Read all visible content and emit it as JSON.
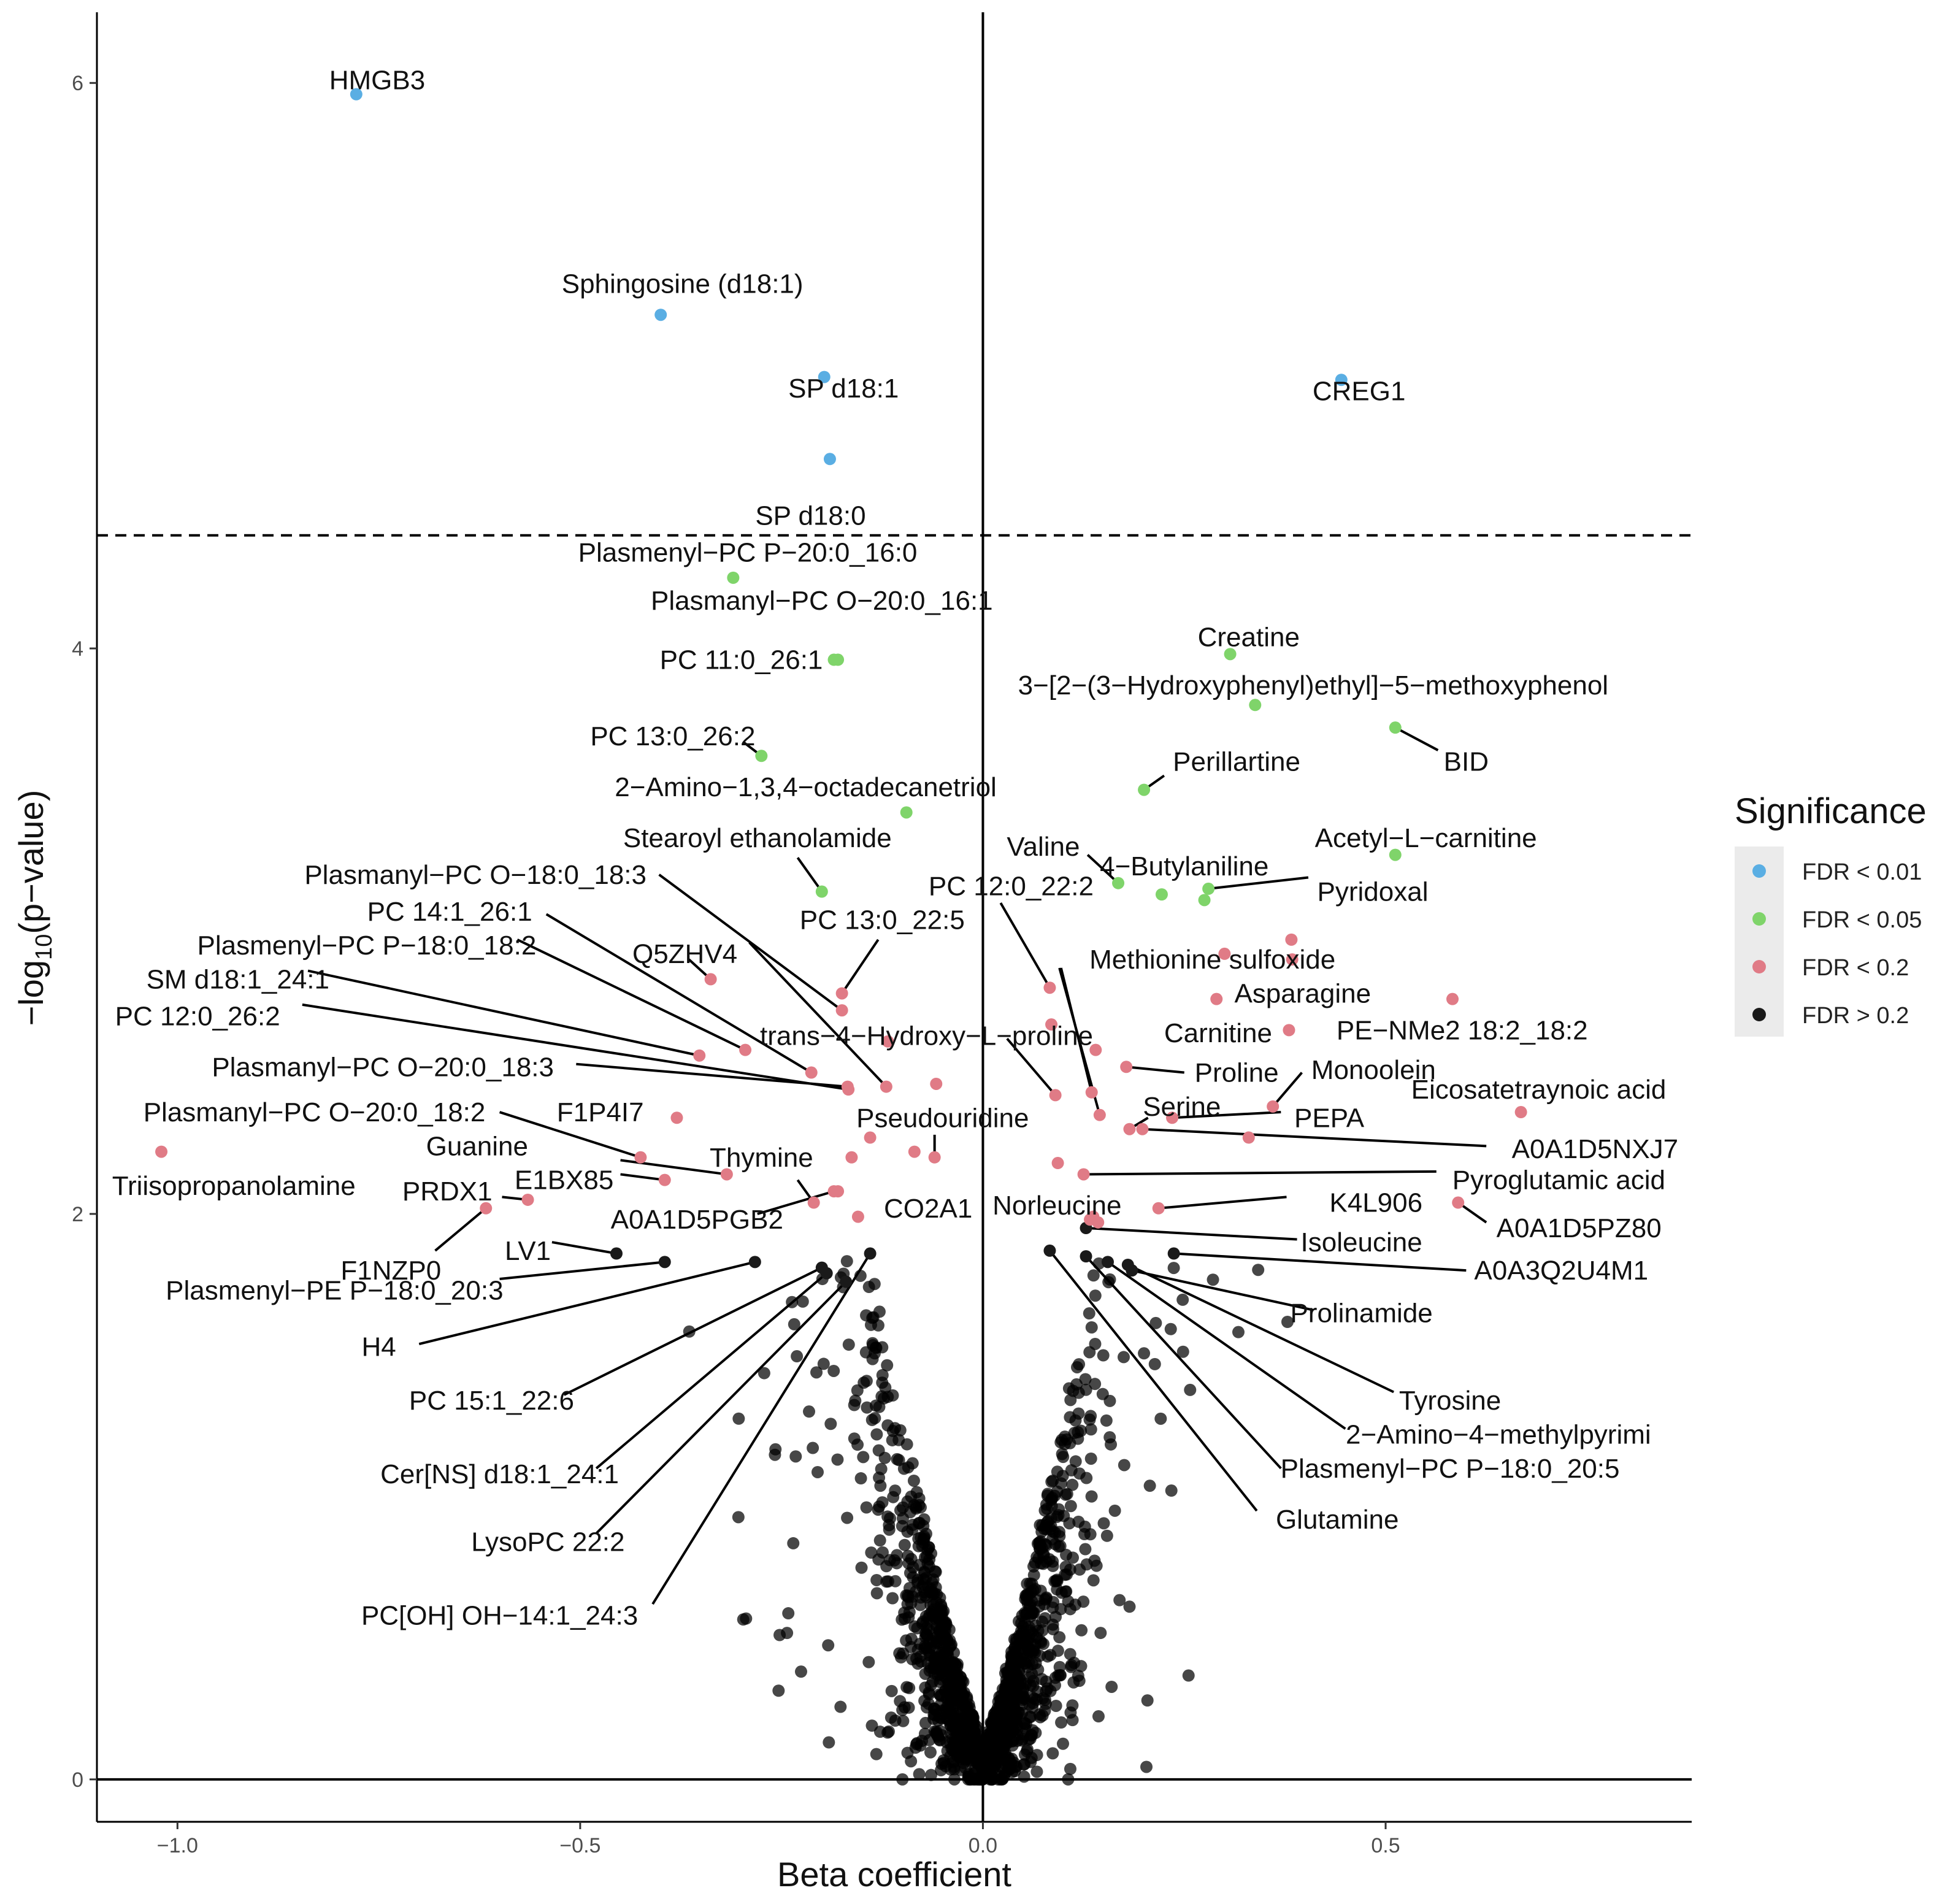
{
  "chart_data": {
    "type": "scatter",
    "title": "",
    "xlabel": "Beta coefficient",
    "ylabel_parts": [
      "−log",
      "10",
      "(p−value)"
    ],
    "xlim": [
      -1.1,
      0.88
    ],
    "ylim": [
      -0.15,
      6.25
    ],
    "x_ticks": [
      -1.0,
      -0.5,
      0.0,
      0.5
    ],
    "x_tick_labels": [
      "−1.0",
      "−0.5",
      "0.0",
      "0.5"
    ],
    "y_ticks": [
      0,
      2,
      4,
      6
    ],
    "y_tick_labels": [
      "0",
      "2",
      "4",
      "6"
    ],
    "threshold_y": 4.4,
    "colors": {
      "FDR < 0.01": "#5aaee3",
      "FDR < 0.05": "#7fd46a",
      "FDR < 0.2": "#e07b86",
      "FDR > 0.2": "#1a1a1a"
    },
    "legend": {
      "title": "Significance",
      "position": "right",
      "entries": [
        "FDR < 0.01",
        "FDR < 0.05",
        "FDR < 0.2",
        "FDR > 0.2"
      ]
    },
    "labeled_points": [
      {
        "label": "HMGB3",
        "x": -0.778,
        "y": 5.96,
        "sig": "FDR < 0.01",
        "tx": -0.752,
        "ty": 6.01,
        "anchor": "middle"
      },
      {
        "label": "Sphingosine (d18:1)",
        "x": -0.4,
        "y": 5.18,
        "sig": "FDR < 0.01",
        "tx": -0.373,
        "ty": 5.29,
        "anchor": "middle"
      },
      {
        "label": "SP d18:1",
        "x": -0.197,
        "y": 4.96,
        "sig": "FDR < 0.01",
        "tx": -0.173,
        "ty": 4.92,
        "anchor": "middle"
      },
      {
        "label": "SP d18:0",
        "x": -0.19,
        "y": 4.67,
        "sig": "FDR < 0.01",
        "tx": -0.214,
        "ty": 4.47,
        "anchor": "middle"
      },
      {
        "label": "CREG1",
        "x": 0.445,
        "y": 4.95,
        "sig": "FDR < 0.01",
        "tx": 0.467,
        "ty": 4.91,
        "anchor": "middle"
      },
      {
        "label": "Plasmenyl−PC P−20:0_16:0",
        "x": -0.31,
        "y": 4.25,
        "sig": "FDR < 0.05",
        "tx": -0.292,
        "ty": 4.34,
        "anchor": "middle"
      },
      {
        "label": "Plasmanyl−PC O−20:0_16:1",
        "x": -0.18,
        "y": 3.96,
        "sig": "FDR < 0.05",
        "tx": -0.2,
        "ty": 4.17,
        "anchor": "middle"
      },
      {
        "label": "PC 11:0_26:1",
        "x": -0.185,
        "y": 3.96,
        "sig": "FDR < 0.05",
        "tx": -0.3,
        "ty": 3.96,
        "anchor": "middle"
      },
      {
        "label": "PC 13:0_26:2",
        "x": -0.275,
        "y": 3.62,
        "sig": "FDR < 0.05",
        "tx": -0.385,
        "ty": 3.69,
        "anchor": "middle",
        "lx1": -0.298,
        "ly1": 3.67
      },
      {
        "label": "2−Amino−1,3,4−octadecanetriol",
        "x": -0.095,
        "y": 3.42,
        "sig": "FDR < 0.05",
        "tx": -0.22,
        "ty": 3.51,
        "anchor": "middle"
      },
      {
        "label": "Stearoyl ethanolamide",
        "x": -0.2,
        "y": 3.14,
        "sig": "FDR < 0.05",
        "tx": -0.28,
        "ty": 3.33,
        "anchor": "middle",
        "lx1": -0.23,
        "ly1": 3.26
      },
      {
        "label": "Creatine",
        "x": 0.307,
        "y": 3.98,
        "sig": "FDR < 0.05",
        "tx": 0.33,
        "ty": 4.04,
        "anchor": "middle"
      },
      {
        "label": "3−[2−(3−Hydroxyphenyl)ethyl]−5−methoxyphenol",
        "x": 0.338,
        "y": 3.8,
        "sig": "FDR < 0.05",
        "tx": 0.41,
        "ty": 3.87,
        "anchor": "middle"
      },
      {
        "label": "BID",
        "x": 0.512,
        "y": 3.72,
        "sig": "FDR < 0.05",
        "tx": 0.6,
        "ty": 3.6,
        "anchor": "middle",
        "lx1": 0.565,
        "ly1": 3.64
      },
      {
        "label": "Perillartine",
        "x": 0.2,
        "y": 3.5,
        "sig": "FDR < 0.05",
        "tx": 0.315,
        "ty": 3.6,
        "anchor": "middle",
        "lx1": 0.225,
        "ly1": 3.55
      },
      {
        "label": "Acetyl−L−carnitine",
        "x": 0.512,
        "y": 3.27,
        "sig": "FDR < 0.05",
        "tx": 0.55,
        "ty": 3.33,
        "anchor": "middle"
      },
      {
        "label": "Valine",
        "x": 0.168,
        "y": 3.17,
        "sig": "FDR < 0.05",
        "tx": 0.075,
        "ty": 3.3,
        "anchor": "middle",
        "lx1": 0.13,
        "ly1": 3.27
      },
      {
        "label": "4−Butylaniline",
        "x": 0.222,
        "y": 3.13,
        "sig": "FDR < 0.05",
        "tx": 0.25,
        "ty": 3.23,
        "anchor": "middle"
      },
      {
        "label": "Pyridoxal",
        "x": 0.28,
        "y": 3.15,
        "sig": "FDR < 0.05",
        "tx": 0.484,
        "ty": 3.14,
        "anchor": "middle",
        "lx1": 0.404,
        "ly1": 3.19
      },
      {
        "label": "",
        "x": 0.275,
        "y": 3.11,
        "sig": "FDR < 0.05"
      },
      {
        "label": "PC 13:0_22:5",
        "x": -0.175,
        "y": 2.78,
        "sig": "FDR < 0.2",
        "tx": -0.125,
        "ty": 3.04,
        "anchor": "middle",
        "lx1": -0.13,
        "ly1": 2.97
      },
      {
        "label": "PC 12:0_22:2",
        "x": 0.083,
        "y": 2.8,
        "sig": "FDR < 0.2",
        "tx": 0.035,
        "ty": 3.16,
        "anchor": "middle",
        "lx1": 0.022,
        "ly1": 3.1
      },
      {
        "label": "Plasmanyl−PC O−18:0_18:3",
        "x": -0.175,
        "y": 2.72,
        "sig": "FDR < 0.2",
        "tx": -0.63,
        "ty": 3.2,
        "anchor": "middle",
        "lx1": -0.402,
        "ly1": 3.2
      },
      {
        "label": "PC 14:1_26:1",
        "x": -0.213,
        "y": 2.5,
        "sig": "FDR < 0.2",
        "tx": -0.662,
        "ty": 3.07,
        "anchor": "middle",
        "lx1": -0.542,
        "ly1": 3.06
      },
      {
        "label": "Plasmenyl−PC P−18:0_18:2",
        "x": -0.295,
        "y": 2.58,
        "sig": "FDR < 0.2",
        "tx": -0.765,
        "ty": 2.95,
        "anchor": "middle",
        "lx1": -0.578,
        "ly1": 2.97
      },
      {
        "label": "SM d18:1_24:1",
        "x": -0.352,
        "y": 2.56,
        "sig": "FDR < 0.2",
        "tx": -0.925,
        "ty": 2.83,
        "anchor": "middle",
        "lx1": -0.838,
        "ly1": 2.86
      },
      {
        "label": "PC 12:0_26:2",
        "x": -0.167,
        "y": 2.44,
        "sig": "FDR < 0.2",
        "tx": -0.975,
        "ty": 2.7,
        "anchor": "middle",
        "lx1": -0.845,
        "ly1": 2.74
      },
      {
        "label": "Q5ZHV4",
        "x": -0.338,
        "y": 2.83,
        "sig": "FDR < 0.2",
        "tx": -0.37,
        "ty": 2.92,
        "anchor": "middle",
        "lx1": -0.365,
        "ly1": 2.9
      },
      {
        "label": "trans−4−Hydroxy−L−proline",
        "x": 0.09,
        "y": 2.42,
        "sig": "FDR < 0.2",
        "tx": -0.07,
        "ty": 2.63,
        "anchor": "middle",
        "lx1": 0.03,
        "ly1": 2.62
      },
      {
        "label": "",
        "x": -0.12,
        "y": 2.45,
        "sig": "FDR < 0.2",
        "lx1": -0.29,
        "ly1": 2.96
      },
      {
        "label": "",
        "x": -0.118,
        "y": 2.61,
        "sig": "FDR < 0.2"
      },
      {
        "label": "Plasmanyl−PC O−20:0_18:3",
        "x": -0.168,
        "y": 2.45,
        "sig": "FDR < 0.2",
        "tx": -0.745,
        "ty": 2.52,
        "anchor": "middle",
        "lx1": -0.505,
        "ly1": 2.53
      },
      {
        "label": "Plasmanyl−PC O−20:0_18:2",
        "x": -0.425,
        "y": 2.2,
        "sig": "FDR < 0.2",
        "tx": -0.83,
        "ty": 2.36,
        "anchor": "middle",
        "lx1": -0.6,
        "ly1": 2.36
      },
      {
        "label": "F1P4I7",
        "x": -0.38,
        "y": 2.34,
        "sig": "FDR < 0.2",
        "tx": -0.475,
        "ty": 2.36,
        "anchor": "middle"
      },
      {
        "label": "Guanine",
        "x": -0.318,
        "y": 2.14,
        "sig": "FDR < 0.2",
        "tx": -0.628,
        "ty": 2.24,
        "anchor": "middle",
        "lx1": -0.45,
        "ly1": 2.19
      },
      {
        "label": "E1BX85",
        "x": -0.395,
        "y": 2.12,
        "sig": "FDR < 0.2",
        "tx": -0.52,
        "ty": 2.12,
        "anchor": "middle",
        "lx1": -0.45,
        "ly1": 2.14
      },
      {
        "label": "Thymine",
        "x": -0.21,
        "y": 2.04,
        "sig": "FDR < 0.2",
        "tx": -0.275,
        "ty": 2.2,
        "anchor": "middle",
        "lx1": -0.23,
        "ly1": 2.12
      },
      {
        "label": "PRDX1",
        "x": -0.565,
        "y": 2.05,
        "sig": "FDR < 0.2",
        "tx": -0.665,
        "ty": 2.08,
        "anchor": "middle",
        "lx1": -0.597,
        "ly1": 2.06
      },
      {
        "label": "A0A1D5PGB2",
        "x": -0.185,
        "y": 2.08,
        "sig": "FDR < 0.2",
        "tx": -0.355,
        "ty": 1.98,
        "anchor": "middle",
        "lx1": -0.28,
        "ly1": 2.0
      },
      {
        "label": "CO2A1",
        "x": -0.155,
        "y": 1.99,
        "sig": "FDR < 0.2",
        "tx": -0.068,
        "ty": 2.02,
        "anchor": "middle"
      },
      {
        "label": "Triisopropanolamine",
        "x": -1.02,
        "y": 2.22,
        "sig": "FDR < 0.2",
        "tx": -0.93,
        "ty": 2.1,
        "anchor": "middle"
      },
      {
        "label": "F1NZP0",
        "x": -0.617,
        "y": 2.02,
        "sig": "FDR < 0.2",
        "tx": -0.735,
        "ty": 1.8,
        "anchor": "middle",
        "lx1": -0.68,
        "ly1": 1.87
      },
      {
        "label": "Pseudouridine",
        "x": -0.06,
        "y": 2.2,
        "sig": "FDR < 0.2",
        "tx": -0.05,
        "ty": 2.34,
        "anchor": "middle",
        "lx1": -0.06,
        "ly1": 2.28
      },
      {
        "label": "",
        "x": -0.085,
        "y": 2.22,
        "sig": "FDR < 0.2"
      },
      {
        "label": "",
        "x": -0.058,
        "y": 2.46,
        "sig": "FDR < 0.2"
      },
      {
        "label": "",
        "x": -0.18,
        "y": 2.08,
        "sig": "FDR < 0.2"
      },
      {
        "label": "",
        "x": -0.163,
        "y": 2.2,
        "sig": "FDR < 0.2"
      },
      {
        "label": "",
        "x": -0.14,
        "y": 2.27,
        "sig": "FDR < 0.2"
      },
      {
        "label": "Methionine sulfoxide",
        "x": 0.3,
        "y": 2.92,
        "sig": "FDR < 0.2",
        "tx": 0.285,
        "ty": 2.9,
        "anchor": "middle"
      },
      {
        "label": "",
        "x": 0.383,
        "y": 2.97,
        "sig": "FDR < 0.2"
      },
      {
        "label": "",
        "x": 0.384,
        "y": 2.9,
        "sig": "FDR < 0.2"
      },
      {
        "label": "Asparagine",
        "x": 0.29,
        "y": 2.76,
        "sig": "FDR < 0.2",
        "tx": 0.397,
        "ty": 2.78,
        "anchor": "middle"
      },
      {
        "label": "Carnitine",
        "x": 0.38,
        "y": 2.65,
        "sig": "FDR < 0.2",
        "tx": 0.292,
        "ty": 2.64,
        "anchor": "middle"
      },
      {
        "label": "PE−NMe2 18:2_18:2",
        "x": 0.583,
        "y": 2.76,
        "sig": "FDR < 0.2",
        "tx": 0.595,
        "ty": 2.65,
        "anchor": "middle"
      },
      {
        "label": "Proline",
        "x": 0.178,
        "y": 2.52,
        "sig": "FDR < 0.2",
        "tx": 0.315,
        "ty": 2.5,
        "anchor": "middle",
        "lx1": 0.25,
        "ly1": 2.5
      },
      {
        "label": "Monoolein",
        "x": 0.36,
        "y": 2.38,
        "sig": "FDR < 0.2",
        "tx": 0.485,
        "ty": 2.51,
        "anchor": "middle",
        "lx1": 0.396,
        "ly1": 2.5
      },
      {
        "label": "Serine",
        "x": 0.182,
        "y": 2.3,
        "sig": "FDR < 0.2",
        "tx": 0.247,
        "ty": 2.38,
        "anchor": "middle",
        "lx1": 0.205,
        "ly1": 2.34
      },
      {
        "label": "PEPA",
        "x": 0.235,
        "y": 2.34,
        "sig": "FDR < 0.2",
        "tx": 0.43,
        "ty": 2.34,
        "anchor": "middle",
        "lx1": 0.37,
        "ly1": 2.36
      },
      {
        "label": "Eicosatetraynoic acid",
        "x": 0.668,
        "y": 2.36,
        "sig": "FDR < 0.2",
        "tx": 0.69,
        "ty": 2.44,
        "anchor": "middle"
      },
      {
        "label": "A0A1D5NXJ7",
        "x": 0.198,
        "y": 2.3,
        "sig": "FDR < 0.2",
        "tx": 0.76,
        "ty": 2.23,
        "anchor": "middle",
        "lx1": 0.625,
        "ly1": 2.24
      },
      {
        "label": "Pyroglutamic acid",
        "x": 0.125,
        "y": 2.14,
        "sig": "FDR < 0.2",
        "tx": 0.715,
        "ty": 2.12,
        "anchor": "middle",
        "lx1": 0.563,
        "ly1": 2.15
      },
      {
        "label": "Norleucine",
        "x": 0.133,
        "y": 1.98,
        "sig": "FDR < 0.2",
        "tx": 0.092,
        "ty": 2.03,
        "anchor": "middle"
      },
      {
        "label": "K4L906",
        "x": 0.218,
        "y": 2.02,
        "sig": "FDR < 0.2",
        "tx": 0.488,
        "ty": 2.04,
        "anchor": "middle",
        "lx1": 0.377,
        "ly1": 2.06
      },
      {
        "label": "A0A1D5PZ80",
        "x": 0.59,
        "y": 2.04,
        "sig": "FDR < 0.2",
        "tx": 0.74,
        "ty": 1.95,
        "anchor": "middle",
        "lx1": 0.625,
        "ly1": 1.97
      },
      {
        "label": "",
        "x": 0.085,
        "y": 2.67,
        "sig": "FDR < 0.2"
      },
      {
        "label": "",
        "x": 0.14,
        "y": 2.58,
        "sig": "FDR < 0.2"
      },
      {
        "label": "",
        "x": 0.135,
        "y": 2.43,
        "sig": "FDR < 0.2",
        "lx1": 0.097,
        "ly1": 2.87
      },
      {
        "label": "",
        "x": 0.145,
        "y": 2.35,
        "sig": "FDR < 0.2",
        "lx1": 0.095,
        "ly1": 2.87
      },
      {
        "label": "",
        "x": 0.093,
        "y": 2.18,
        "sig": "FDR < 0.2"
      },
      {
        "label": "",
        "x": 0.33,
        "y": 2.27,
        "sig": "FDR < 0.2"
      },
      {
        "label": "",
        "x": 0.137,
        "y": 1.99,
        "sig": "FDR < 0.2"
      },
      {
        "label": "",
        "x": 0.143,
        "y": 1.97,
        "sig": "FDR < 0.2"
      }
    ],
    "annotated_gray": [
      {
        "label": "LV1",
        "x": -0.455,
        "y": 1.86,
        "tx": -0.565,
        "ty": 1.87,
        "anchor": "middle",
        "lx1": -0.535,
        "ly1": 1.9
      },
      {
        "label": "Plasmenyl−PE P−18:0_20:3",
        "x": -0.395,
        "y": 1.83,
        "tx": -0.805,
        "ty": 1.73,
        "anchor": "middle",
        "lx1": -0.6,
        "ly1": 1.77
      },
      {
        "label": "H4",
        "x": -0.283,
        "y": 1.83,
        "tx": -0.75,
        "ty": 1.53,
        "anchor": "middle",
        "lx1": -0.7,
        "ly1": 1.54
      },
      {
        "label": "PC 15:1_22:6",
        "x": -0.2,
        "y": 1.81,
        "tx": -0.61,
        "ty": 1.34,
        "anchor": "middle",
        "lx1": -0.52,
        "ly1": 1.36
      },
      {
        "label": "Cer[NS] d18:1_24:1",
        "x": -0.194,
        "y": 1.79,
        "tx": -0.6,
        "ty": 1.08,
        "anchor": "middle",
        "lx1": -0.48,
        "ly1": 1.1
      },
      {
        "label": "LysoPC 22:2",
        "x": -0.17,
        "y": 1.76,
        "tx": -0.54,
        "ty": 0.84,
        "anchor": "middle",
        "lx1": -0.48,
        "ly1": 0.87
      },
      {
        "label": "PC[OH] OH−14:1_24:3",
        "x": -0.14,
        "y": 1.86,
        "tx": -0.6,
        "ty": 0.58,
        "anchor": "middle",
        "lx1": -0.41,
        "ly1": 0.62
      },
      {
        "label": "Isoleucine",
        "x": 0.128,
        "y": 1.95,
        "tx": 0.47,
        "ty": 1.9,
        "anchor": "middle",
        "lx1": 0.39,
        "ly1": 1.91
      },
      {
        "label": "A0A3Q2U4M1",
        "x": 0.237,
        "y": 1.86,
        "tx": 0.718,
        "ty": 1.8,
        "anchor": "middle",
        "lx1": 0.6,
        "ly1": 1.8
      },
      {
        "label": "Prolinamide",
        "x": 0.185,
        "y": 1.8,
        "tx": 0.47,
        "ty": 1.65,
        "anchor": "middle",
        "lx1": 0.41,
        "ly1": 1.66
      },
      {
        "label": "Tyrosine",
        "x": 0.18,
        "y": 1.82,
        "tx": 0.58,
        "ty": 1.34,
        "anchor": "middle",
        "lx1": 0.51,
        "ly1": 1.37
      },
      {
        "label": "2−Amino−4−methylpyrimi",
        "x": 0.155,
        "y": 1.83,
        "tx": 0.64,
        "ty": 1.22,
        "anchor": "middle",
        "lx1": 0.45,
        "ly1": 1.24
      },
      {
        "label": "Plasmenyl−PC P−18:0_20:5",
        "x": 0.128,
        "y": 1.85,
        "tx": 0.58,
        "ty": 1.1,
        "anchor": "middle",
        "lx1": 0.37,
        "ly1": 1.1
      },
      {
        "label": "Glutamine",
        "x": 0.083,
        "y": 1.87,
        "tx": 0.44,
        "ty": 0.92,
        "anchor": "middle",
        "lx1": 0.34,
        "ly1": 0.95
      }
    ]
  }
}
